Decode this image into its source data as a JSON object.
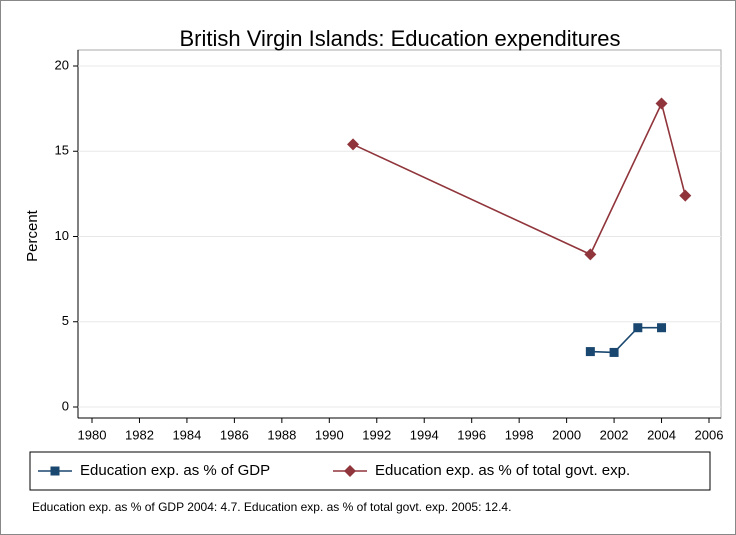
{
  "chart_data": {
    "type": "line",
    "title": "British Virgin Islands: Education expenditures",
    "y_label": "Percent",
    "note": "Education exp. as % of GDP 2004: 4.7. Education exp. as % of total govt. exp. 2005: 12.4.",
    "xlim": [
      1980,
      2006
    ],
    "xticks": [
      1980,
      1982,
      1984,
      1986,
      1988,
      1990,
      1992,
      1994,
      1996,
      1998,
      2000,
      2002,
      2004,
      2006
    ],
    "ylim": [
      0,
      20
    ],
    "yticks": [
      0,
      5,
      10,
      15,
      20
    ],
    "grid": true,
    "series": [
      {
        "name": "Education exp. as % of GDP",
        "color": "#1a476f",
        "marker": "square",
        "x": [
          2001,
          2002,
          2003,
          2004
        ],
        "values": [
          3.25,
          3.2,
          4.65,
          4.65
        ]
      },
      {
        "name": "Education exp. as % of total govt. exp.",
        "color": "#90353b",
        "marker": "diamond",
        "x": [
          1991,
          2001,
          2004,
          2005
        ],
        "values": [
          15.4,
          8.95,
          17.8,
          12.4
        ]
      }
    ]
  }
}
